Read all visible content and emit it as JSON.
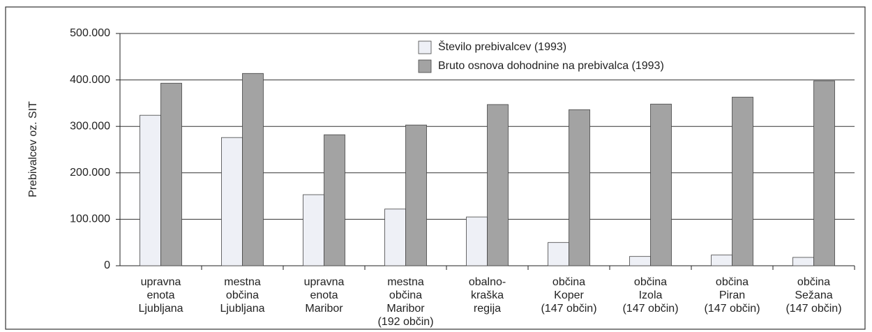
{
  "chart_data": {
    "type": "bar",
    "ylabel": "Prebivalcev oz. SIT",
    "categories": [
      [
        "upravna",
        "enota",
        "Ljubljana"
      ],
      [
        "mestna",
        "občina",
        "Ljubljana"
      ],
      [
        "upravna",
        "enota",
        "Maribor"
      ],
      [
        "mestna",
        "občina",
        "Maribor",
        "(192 občin)"
      ],
      [
        "obalno-",
        "kraška",
        "regija"
      ],
      [
        "občina",
        "Koper",
        "(147 občin)"
      ],
      [
        "občina",
        "Izola",
        "(147 občin)"
      ],
      [
        "občina",
        "Piran",
        "(147 občin)"
      ],
      [
        "občina",
        "Sežana",
        "(147 občin)"
      ]
    ],
    "series": [
      {
        "name": "Število prebivalcev (1993)",
        "color": "#eef0f6",
        "values": [
          324000,
          276000,
          153000,
          122000,
          105000,
          50000,
          20000,
          23000,
          18000
        ]
      },
      {
        "name": "Bruto osnova dohodnine na prebivalca (1993)",
        "color": "#a3a3a3",
        "values": [
          393000,
          414000,
          282000,
          303000,
          347000,
          336000,
          348000,
          363000,
          398000
        ]
      }
    ],
    "ylim": [
      0,
      500000
    ],
    "yticks": [
      0,
      {
        "value": 100000,
        "label": "100.000"
      },
      {
        "value": 200000,
        "label": "200.000"
      },
      {
        "value": 300000,
        "label": "300.000"
      },
      {
        "value": 400000,
        "label": "400.000"
      },
      {
        "value": 500000,
        "label": "500.000"
      }
    ],
    "grid": true,
    "legend": "top"
  }
}
